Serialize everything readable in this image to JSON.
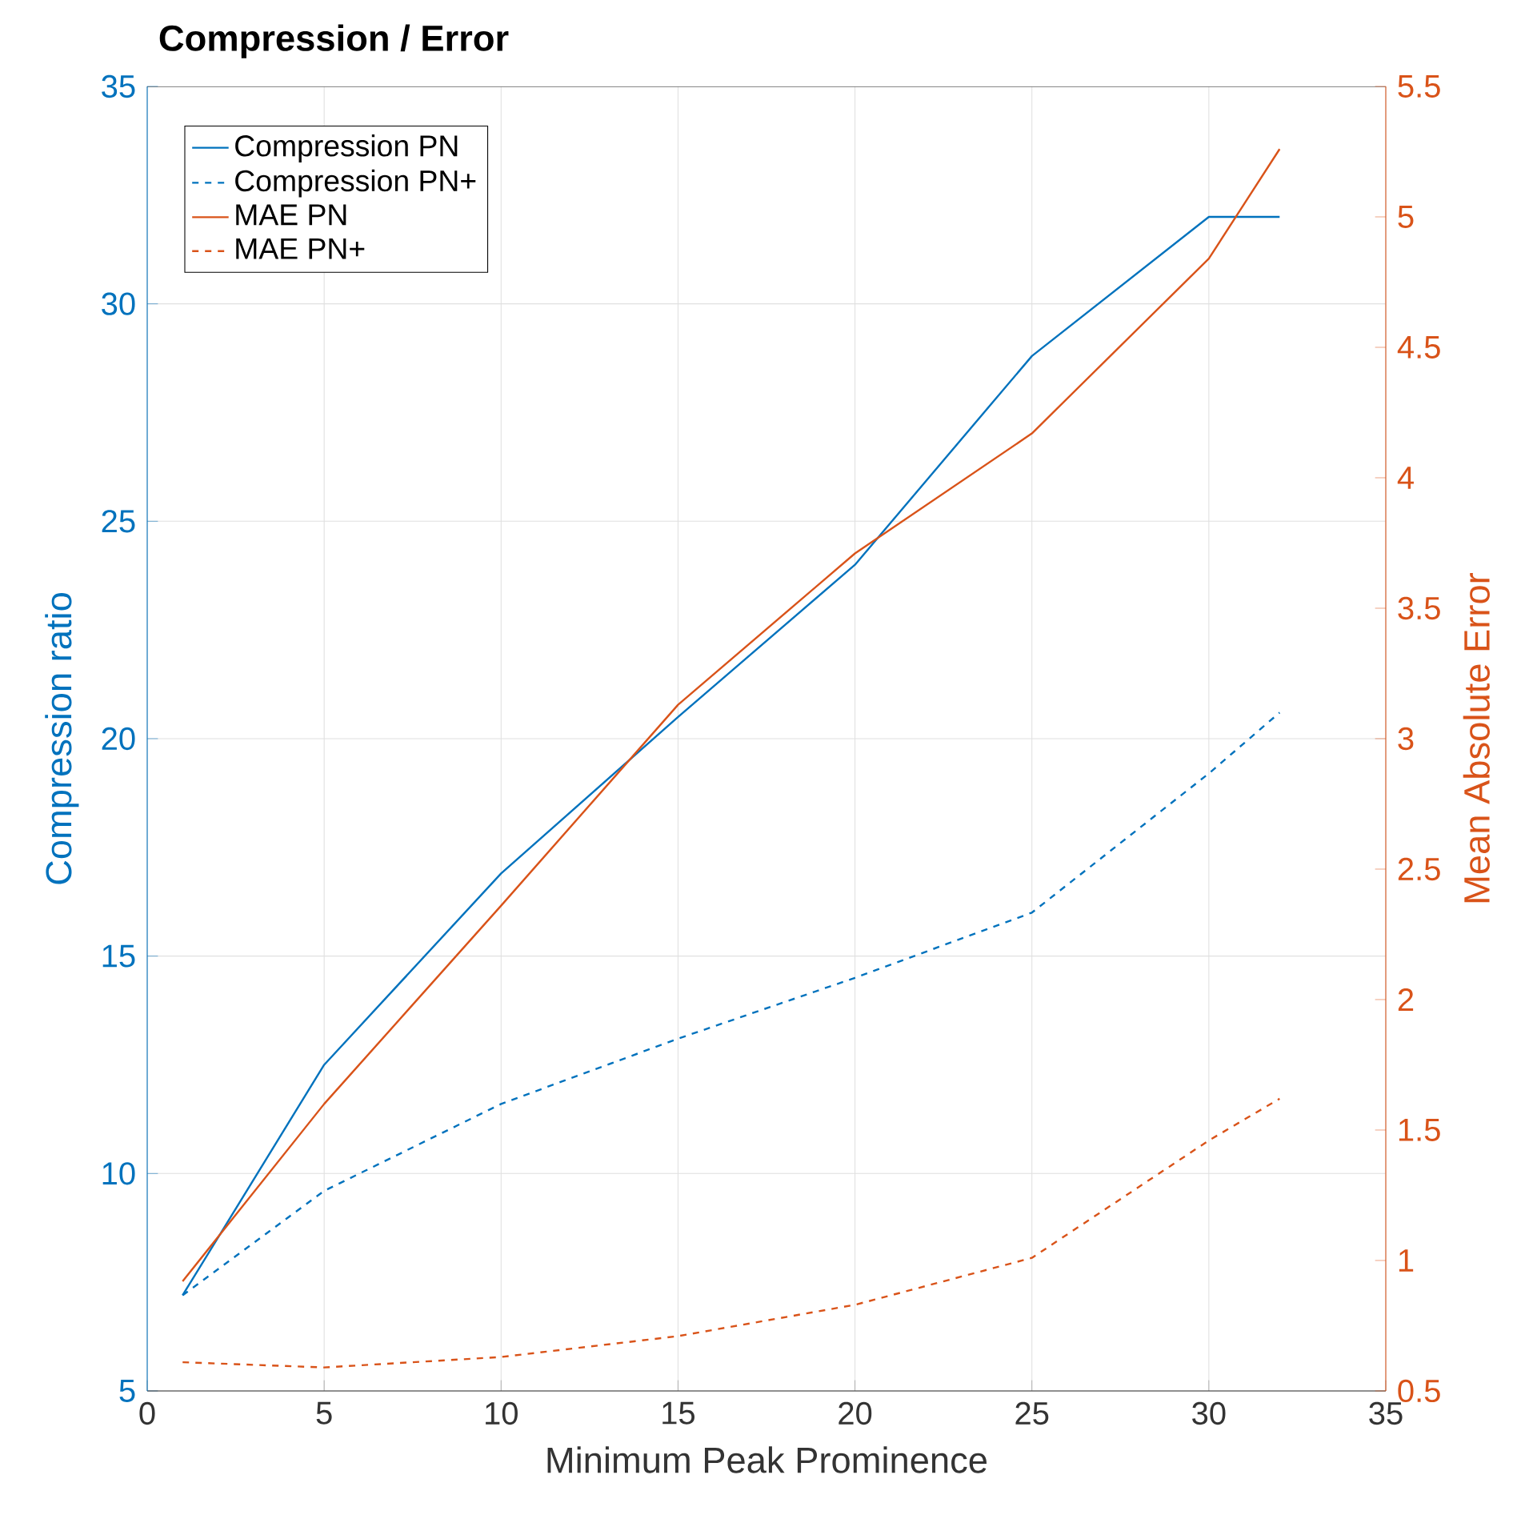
{
  "chart_data": {
    "type": "line",
    "title": "Compression / Error",
    "xlabel": "Minimum Peak Prominence",
    "ylabel": "Compression ratio",
    "y2label": "Mean Absolute Error",
    "x": [
      1,
      5,
      10,
      15,
      20,
      25,
      30,
      32
    ],
    "series": [
      {
        "name": "Compression PN",
        "color": "#0072bd",
        "line_style": "solid",
        "values": [
          7.2,
          12.5,
          16.9,
          20.5,
          24.0,
          28.8,
          32.0,
          32.0
        ]
      },
      {
        "name": "Compression PN+",
        "color": "#0072bd",
        "line_style": "dashed",
        "values": [
          7.2,
          9.6,
          11.6,
          13.1,
          14.5,
          16.0,
          19.2,
          20.6
        ]
      },
      {
        "name": "MAE PN",
        "color": "#d95319",
        "line_style": "solid",
        "axis": "y2",
        "values": [
          0.92,
          1.6,
          2.36,
          3.13,
          3.71,
          4.17,
          4.84,
          5.26
        ]
      },
      {
        "name": "MAE PN+",
        "color": "#d95319",
        "line_style": "dashed",
        "axis": "y2",
        "values": [
          0.61,
          0.59,
          0.63,
          0.71,
          0.83,
          1.01,
          1.46,
          1.62
        ]
      }
    ],
    "xlim": [
      0,
      35
    ],
    "xticks": [
      0,
      5,
      10,
      15,
      20,
      25,
      30,
      35
    ],
    "ylim": [
      5,
      35
    ],
    "yticks": [
      5,
      10,
      15,
      20,
      25,
      30,
      35
    ],
    "y2lim": [
      0.5,
      5.5
    ],
    "y2ticks": [
      0.5,
      1,
      1.5,
      2,
      2.5,
      3,
      3.5,
      4,
      4.5,
      5,
      5.5
    ],
    "grid": true,
    "legend": "top left",
    "marker": "none"
  }
}
